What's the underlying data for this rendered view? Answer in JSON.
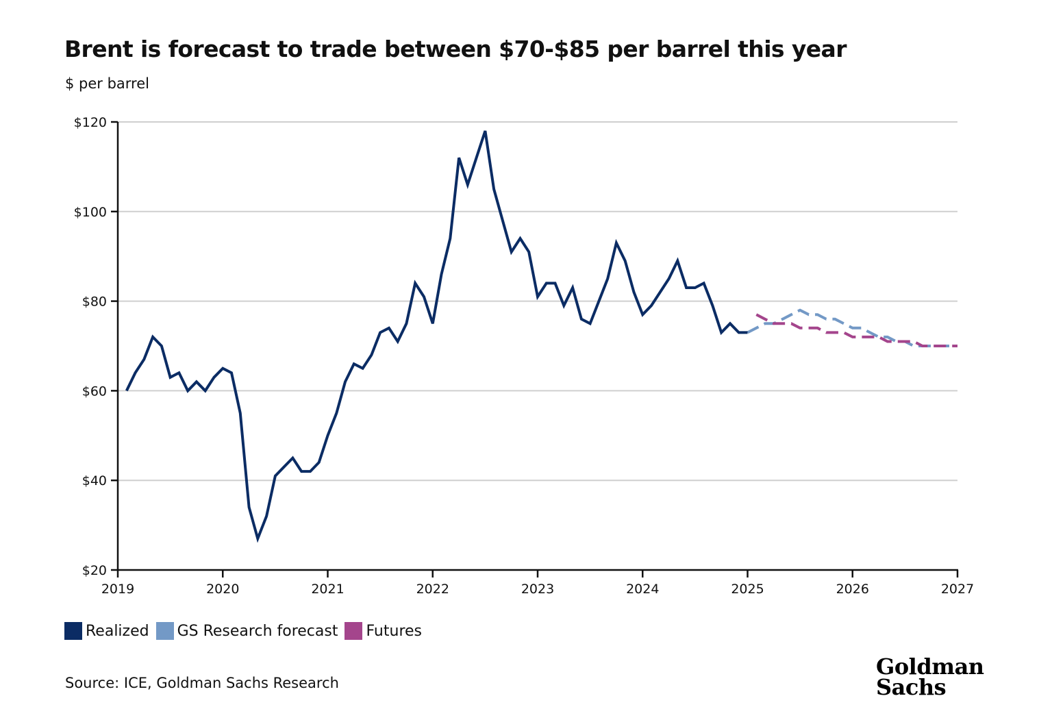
{
  "header": {
    "title": "Brent is forecast to trade between $70-$85 per barrel this year",
    "subtitle": "$ per barrel"
  },
  "footer": {
    "source": "Source: ICE, Goldman Sachs Research",
    "logo_line1": "Goldman",
    "logo_line2": "Sachs"
  },
  "chart_data": {
    "type": "line",
    "title": "Brent is forecast to trade between $70-$85 per barrel this year",
    "ylabel": "$ per barrel",
    "xlabel": "",
    "xlim": [
      "2019-01",
      "2027-01"
    ],
    "ylim": [
      20,
      120
    ],
    "grid": true,
    "legend_position": "bottom-left",
    "x_ticks": [
      "2019",
      "2020",
      "2021",
      "2022",
      "2023",
      "2024",
      "2025",
      "2026",
      "2027"
    ],
    "y_ticks": [
      {
        "value": 20,
        "label": "$20"
      },
      {
        "value": 40,
        "label": "$40"
      },
      {
        "value": 60,
        "label": "$60"
      },
      {
        "value": 80,
        "label": "$80"
      },
      {
        "value": 100,
        "label": "$100"
      },
      {
        "value": 120,
        "label": "$120"
      }
    ],
    "series": [
      {
        "name": "Realized",
        "color": "#0b2c64",
        "style": "solid",
        "x": [
          "2019-02",
          "2019-03",
          "2019-04",
          "2019-05",
          "2019-06",
          "2019-07",
          "2019-08",
          "2019-09",
          "2019-10",
          "2019-11",
          "2019-12",
          "2020-01",
          "2020-02",
          "2020-03",
          "2020-04",
          "2020-05",
          "2020-06",
          "2020-07",
          "2020-08",
          "2020-09",
          "2020-10",
          "2020-11",
          "2020-12",
          "2021-01",
          "2021-02",
          "2021-03",
          "2021-04",
          "2021-05",
          "2021-06",
          "2021-07",
          "2021-08",
          "2021-09",
          "2021-10",
          "2021-11",
          "2021-12",
          "2022-01",
          "2022-02",
          "2022-03",
          "2022-04",
          "2022-05",
          "2022-06",
          "2022-07",
          "2022-08",
          "2022-09",
          "2022-10",
          "2022-11",
          "2022-12",
          "2023-01",
          "2023-02",
          "2023-03",
          "2023-04",
          "2023-05",
          "2023-06",
          "2023-07",
          "2023-08",
          "2023-09",
          "2023-10",
          "2023-11",
          "2023-12",
          "2024-01",
          "2024-02",
          "2024-03",
          "2024-04",
          "2024-05",
          "2024-06",
          "2024-07",
          "2024-08",
          "2024-09",
          "2024-10",
          "2024-11",
          "2024-12",
          "2025-01"
        ],
        "values": [
          60,
          64,
          67,
          72,
          70,
          63,
          64,
          60,
          62,
          60,
          63,
          65,
          64,
          55,
          34,
          27,
          32,
          41,
          43,
          45,
          42,
          42,
          44,
          50,
          55,
          62,
          66,
          65,
          68,
          73,
          74,
          71,
          75,
          84,
          81,
          75,
          86,
          94,
          112,
          106,
          112,
          118,
          105,
          98,
          91,
          94,
          91,
          81,
          84,
          84,
          79,
          83,
          76,
          75,
          80,
          85,
          93,
          89,
          82,
          77,
          79,
          82,
          85,
          89,
          83,
          83,
          84,
          79,
          73,
          75,
          73,
          73
        ]
      },
      {
        "name": "GS Research forecast",
        "color": "#7399c6",
        "style": "dashed",
        "x": [
          "2025-01",
          "2025-02",
          "2025-03",
          "2025-04",
          "2025-05",
          "2025-06",
          "2025-07",
          "2025-08",
          "2025-09",
          "2025-10",
          "2025-11",
          "2025-12",
          "2026-01",
          "2026-02",
          "2026-03",
          "2026-04",
          "2026-05",
          "2026-06",
          "2026-07",
          "2026-08",
          "2026-09",
          "2026-10",
          "2026-11",
          "2026-12",
          "2027-01"
        ],
        "values": [
          73,
          74,
          75,
          75,
          76,
          77,
          78,
          77,
          77,
          76,
          76,
          75,
          74,
          74,
          73,
          72,
          72,
          71,
          71,
          70,
          70,
          70,
          70,
          70,
          70
        ]
      },
      {
        "name": "Futures",
        "color": "#a4458c",
        "style": "dashed",
        "x": [
          "2025-02",
          "2025-03",
          "2025-04",
          "2025-05",
          "2025-06",
          "2025-07",
          "2025-08",
          "2025-09",
          "2025-10",
          "2025-11",
          "2025-12",
          "2026-01",
          "2026-02",
          "2026-03",
          "2026-04",
          "2026-05",
          "2026-06",
          "2026-07",
          "2026-08",
          "2026-09",
          "2026-10",
          "2026-11",
          "2026-12",
          "2027-01"
        ],
        "values": [
          77,
          76,
          75,
          75,
          75,
          74,
          74,
          74,
          73,
          73,
          73,
          72,
          72,
          72,
          72,
          71,
          71,
          71,
          71,
          70,
          70,
          70,
          70,
          70
        ]
      }
    ]
  }
}
